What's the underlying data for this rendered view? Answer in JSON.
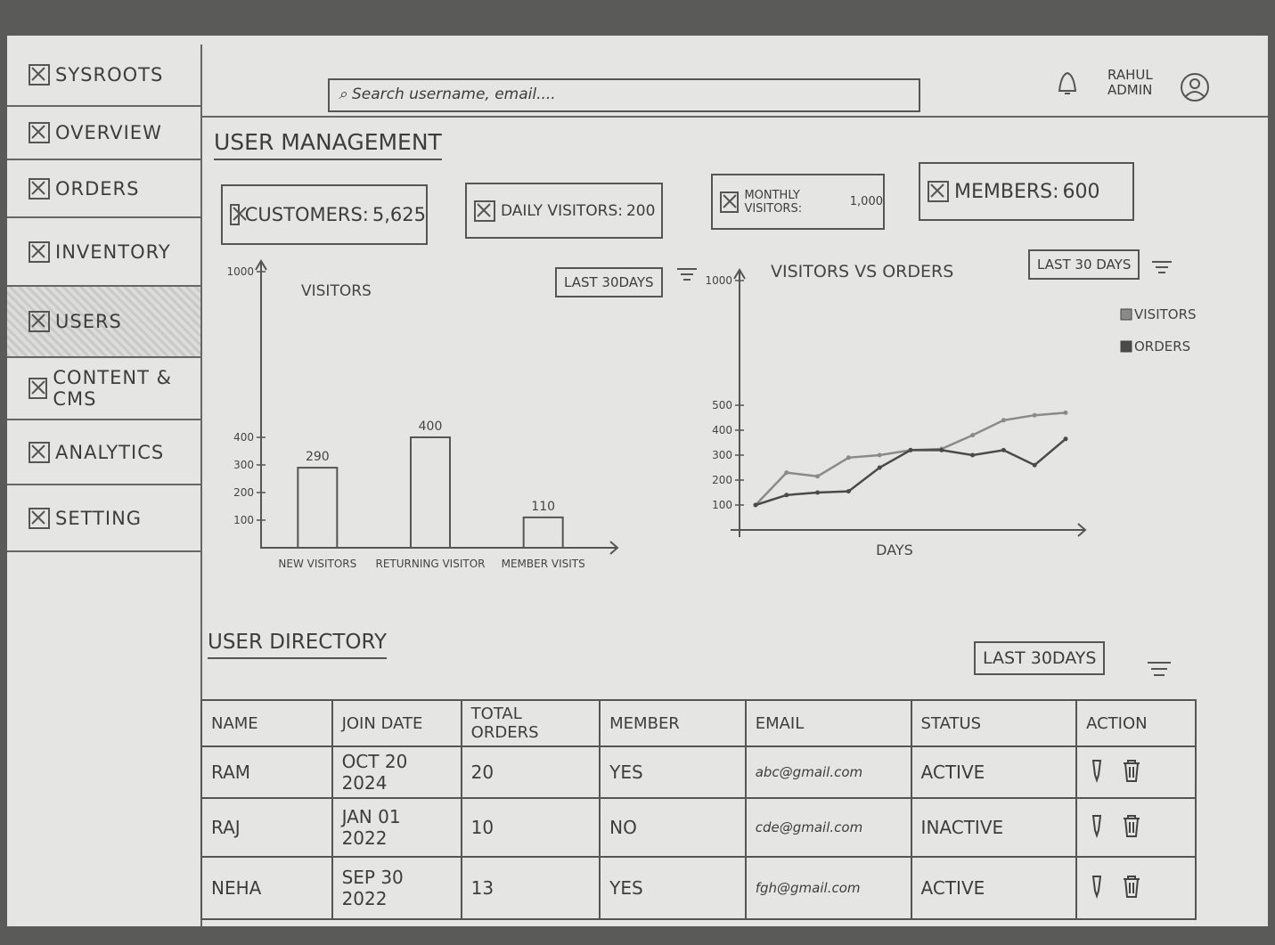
{
  "sidebar": {
    "brand": "SYSROOTS",
    "items": [
      "OVERVIEW",
      "ORDERS",
      "INVENTORY",
      "USERS",
      "CONTENT & CMS",
      "ANALYTICS",
      "SETTING"
    ],
    "active_index": 3
  },
  "header": {
    "search_placeholder": "Search username, email....",
    "user_name": "RAHUL",
    "user_role": "ADMIN"
  },
  "page_title": "USER MANAGEMENT",
  "stats": [
    {
      "label": "CUSTOMERS:",
      "value": "5,625"
    },
    {
      "label": "DAILY VISITORS:",
      "value": "200"
    },
    {
      "label": "MONTHLY VISITORS:",
      "value": "1,000"
    },
    {
      "label": "MEMBERS:",
      "value": "600"
    }
  ],
  "filters": {
    "bar_chart": "LAST 30DAYS",
    "line_chart": "LAST 30 DAYS",
    "directory": "LAST 30DAYS"
  },
  "chart_data": [
    {
      "type": "bar",
      "title": "VISITORS",
      "categories": [
        "NEW VISITORS",
        "RETURNING VISITOR",
        "MEMBER VISITS"
      ],
      "values": [
        290,
        400,
        110
      ],
      "color": "#e4e4e2",
      "ylim": [
        0,
        1000
      ],
      "yticks": [
        100,
        200,
        300,
        400,
        1000
      ]
    },
    {
      "type": "line",
      "title": "VISITORS VS ORDERS",
      "x_label": "DAYS",
      "categories": [
        null,
        null,
        null,
        null,
        null,
        null,
        null,
        null,
        null,
        null,
        null
      ],
      "series": [
        {
          "name": "VISITORS",
          "color": "#8a8a8a",
          "values": [
            100,
            230,
            215,
            290,
            300,
            320,
            325,
            380,
            440,
            460,
            470
          ]
        },
        {
          "name": "ORDERS",
          "color": "#4a4a4a",
          "values": [
            100,
            140,
            150,
            155,
            250,
            320,
            320,
            300,
            320,
            260,
            365
          ]
        }
      ],
      "ylim": [
        0,
        1000
      ],
      "yticks": [
        100,
        200,
        300,
        400,
        500,
        1000
      ]
    }
  ],
  "directory": {
    "title": "USER DIRECTORY",
    "columns": [
      "NAME",
      "JOIN DATE",
      "TOTAL ORDERS",
      "MEMBER",
      "EMAIL",
      "STATUS",
      "ACTION"
    ],
    "rows": [
      [
        "RAM",
        "OCT 20 2024",
        20,
        "YES",
        "abc@gmail.com",
        "ACTIVE"
      ],
      [
        "RAJ",
        "JAN 01 2022",
        10,
        "NO",
        "cde@gmail.com",
        "INACTIVE"
      ],
      [
        "NEHA",
        "SEP 30 2022",
        13,
        "YES",
        "fgh@gmail.com",
        "ACTIVE"
      ]
    ]
  }
}
